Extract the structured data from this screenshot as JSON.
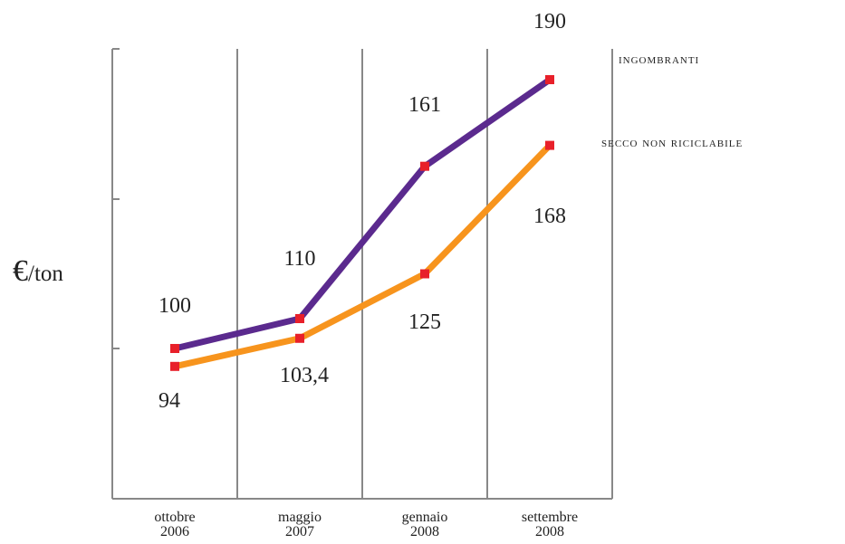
{
  "chart_data": {
    "type": "line",
    "ylabel": {
      "symbol": "€",
      "unit": "/ton"
    },
    "x": [
      {
        "month": "ottobre",
        "year": "2006"
      },
      {
        "month": "maggio",
        "year": "2007"
      },
      {
        "month": "gennaio",
        "year": "2008"
      },
      {
        "month": "settembre",
        "year": "2008"
      }
    ],
    "ylim": [
      60,
      210
    ],
    "grid": {
      "vertical": true,
      "horizontal": false
    },
    "series": [
      {
        "name": "ingombranti",
        "color": "#5b2a8e",
        "values": [
          100,
          110,
          161,
          190
        ],
        "labels": [
          "100",
          "110",
          "161",
          "190"
        ]
      },
      {
        "name": "secco non riciclabile",
        "color": "#f7941d",
        "values": [
          94,
          103.4,
          125,
          168
        ],
        "labels": [
          "94",
          "103,4",
          "125",
          "168"
        ]
      }
    ],
    "marker_color": "#e8202a"
  }
}
